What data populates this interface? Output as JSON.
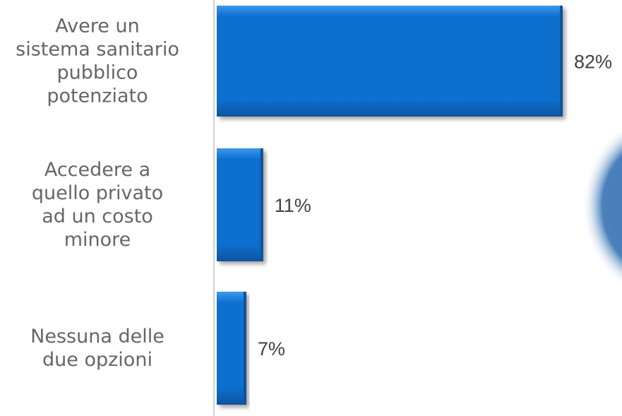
{
  "chart_data": {
    "type": "bar",
    "orientation": "horizontal",
    "title": "",
    "xlabel": "",
    "ylabel": "",
    "categories": [
      "Avere un sistema sanitario pubblico potenziato",
      "Accedere a quello privato ad un costo minore",
      "Nessuna delle due opzioni"
    ],
    "values": [
      82,
      11,
      7
    ],
    "value_labels": [
      "82%",
      "11%",
      "7%"
    ],
    "category_label_lines": [
      [
        "Avere un",
        "sistema sanitario",
        "pubblico",
        "potenziato"
      ],
      [
        "Accedere a",
        "quello privato",
        "ad un costo",
        "minore"
      ],
      [
        "Nessuna delle",
        "due opzioni"
      ]
    ],
    "grid": false,
    "legend": "none",
    "colors": {
      "bar": "#0b6fcf",
      "bar_dark": "#0a4f96",
      "bar_light": "#4aa3f0",
      "axis": "#d0d0d0",
      "category_text": "#666666",
      "value_text": "#404040",
      "decor_circle": "#3f78b5"
    }
  }
}
